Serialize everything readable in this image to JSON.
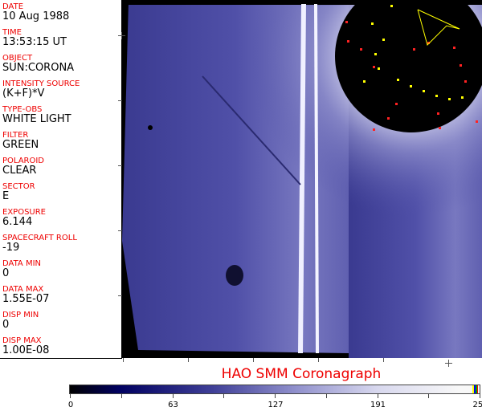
{
  "fields": [
    {
      "label": "DATE",
      "value": "10 Aug 1988"
    },
    {
      "label": "TIME",
      "value": "13:53:15 UT"
    },
    {
      "label": "OBJECT",
      "value": "SUN:CORONA"
    },
    {
      "label": "INTENSITY SOURCE",
      "value": "(K+F)*V"
    },
    {
      "label": "TYPE-OBS",
      "value": "WHITE LIGHT"
    },
    {
      "label": "FILTER",
      "value": "GREEN"
    },
    {
      "label": "POLAROID",
      "value": "CLEAR"
    },
    {
      "label": "SECTOR",
      "value": "E"
    },
    {
      "label": "EXPOSURE",
      "value": "6.144"
    },
    {
      "label": "SPACECRAFT ROLL",
      "value": "-19"
    },
    {
      "label": "DATA MIN",
      "value": "0"
    },
    {
      "label": "DATA MAX",
      "value": "1.55E-07"
    },
    {
      "label": "DISP MIN",
      "value": "0"
    },
    {
      "label": "DISP MAX",
      "value": "1.00E-08"
    }
  ],
  "title": "HAO  SMM Coronagraph",
  "colorbar": {
    "ticks": [
      "0",
      "63",
      "127",
      "191",
      "255"
    ],
    "min": 0,
    "max": 255
  },
  "colors": {
    "label": "#e00000",
    "overlay_red": "#ff2020",
    "overlay_yellow": "#ffff00"
  }
}
